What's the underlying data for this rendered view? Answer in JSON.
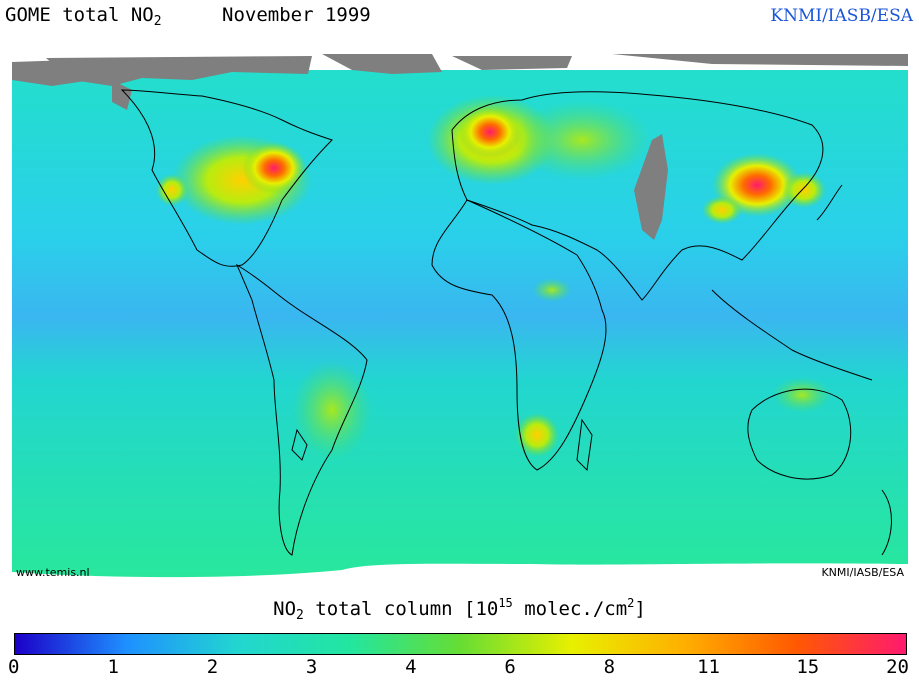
{
  "header": {
    "instrument": "GOME total NO",
    "subscript": "2",
    "period": "November 1999",
    "credit": "KNMI/IASB/ESA"
  },
  "map": {
    "corner_left": "www.temis.nl",
    "corner_right": "KNMI/IASB/ESA",
    "missing_data_color": "#7f7f7f",
    "background_color": "#22d6d0"
  },
  "colorbar": {
    "title_prefix": "NO",
    "title_sub": "2",
    "title_mid": " total column [10",
    "title_sup": "15",
    "title_mid2": " molec./cm",
    "title_sup2": "2",
    "title_end": "]",
    "ticks": [
      "0",
      "1",
      "2",
      "3",
      "4",
      "6",
      "8",
      "11",
      "15",
      "20"
    ],
    "colors": [
      "#1b00c8",
      "#1e90ff",
      "#22d6d0",
      "#22e6a0",
      "#66dd33",
      "#e8f000",
      "#ffb000",
      "#ff5a00",
      "#ff1a6e"
    ]
  }
}
